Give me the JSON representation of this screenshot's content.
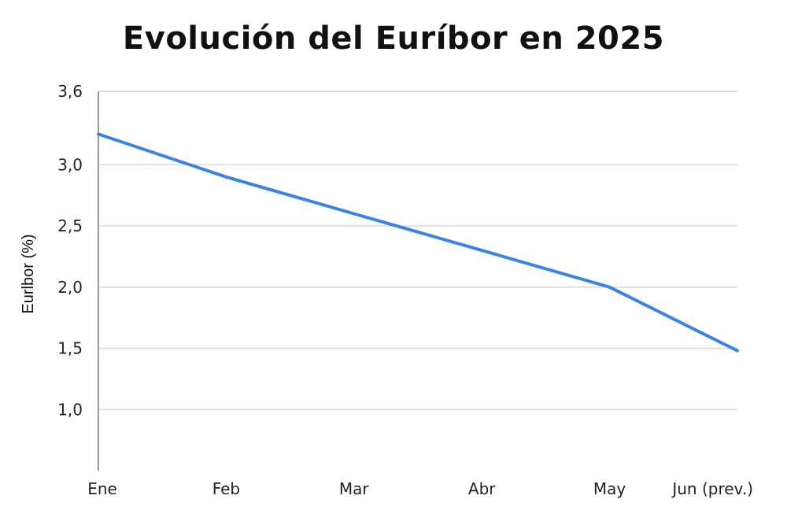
{
  "chart_data": {
    "type": "line",
    "title": "Evolución del Euríbor en 2025",
    "xlabel": "",
    "ylabel": "Eurlbor (%)",
    "categories": [
      "Ene",
      "Feb",
      "Mar",
      "Abr",
      "May",
      "Jun (prev.)"
    ],
    "series": [
      {
        "name": "Euríbor",
        "values": [
          3.25,
          2.9,
          2.6,
          2.3,
          2.0,
          1.48
        ]
      }
    ],
    "yticks": [
      1.0,
      1.5,
      2.0,
      2.5,
      3.0,
      3.6
    ],
    "ytick_labels": [
      "1,0",
      "1,5",
      "2,0",
      "2,5",
      "3,0",
      "3,6"
    ],
    "ylim": [
      0.5,
      3.6
    ],
    "grid": true,
    "colors": {
      "line": "#3b82e6",
      "grid": "#d9d9d9",
      "axis": "#9a9a9a"
    }
  }
}
